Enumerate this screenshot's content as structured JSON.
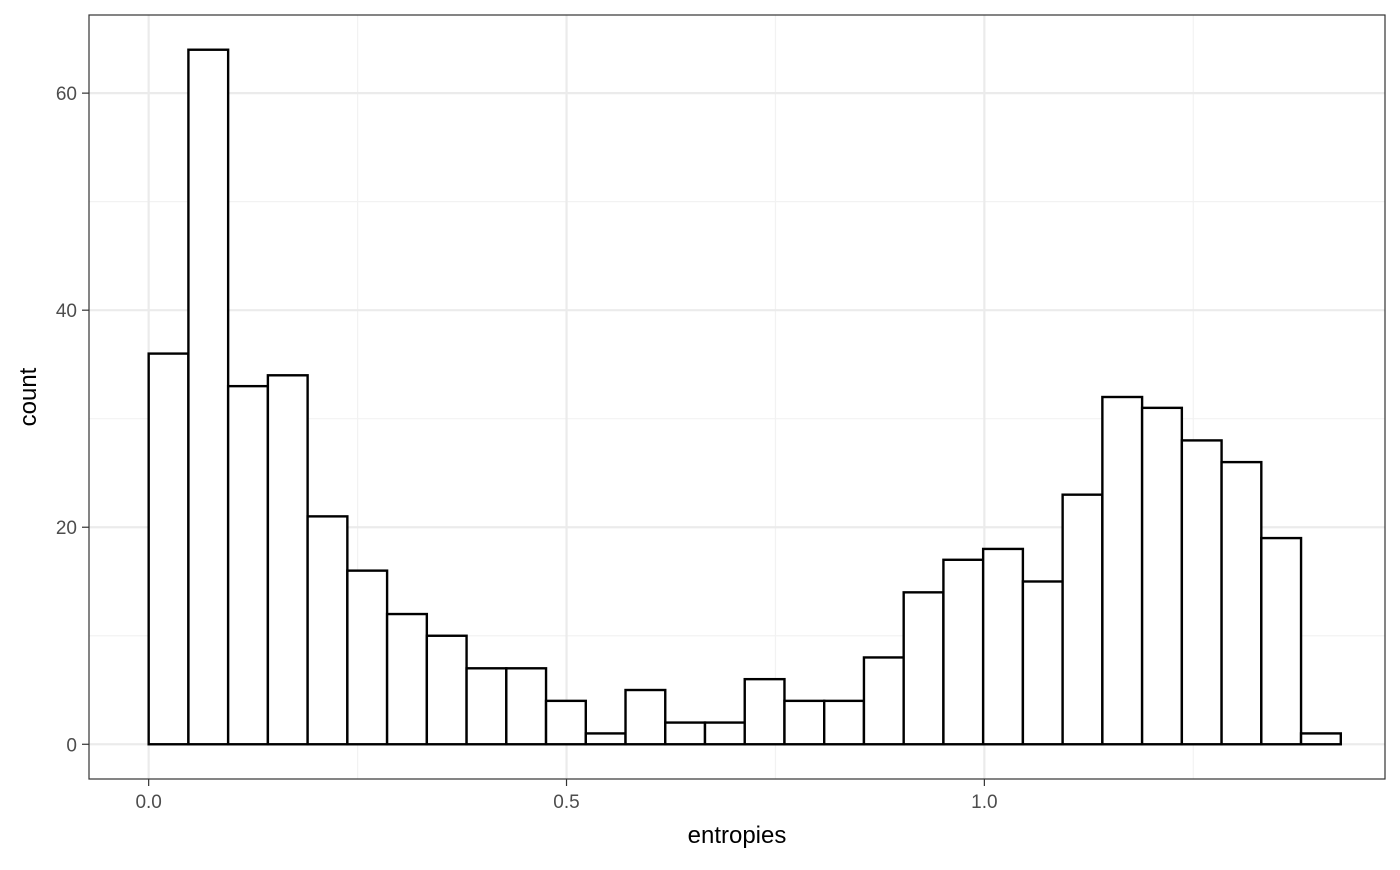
{
  "chart_data": {
    "type": "bar",
    "title": "",
    "xlabel": "entropies",
    "ylabel": "count",
    "x_ticks": [
      "0.0",
      "0.5",
      "1.0"
    ],
    "x_tick_values": [
      0.0,
      0.5,
      1.0
    ],
    "y_ticks": [
      "0",
      "20",
      "40",
      "60"
    ],
    "y_tick_values": [
      0,
      20,
      40,
      60
    ],
    "xlim": [
      -0.0714,
      1.4794
    ],
    "ylim": [
      -3.2,
      67.2
    ],
    "grid": true,
    "legend": "none",
    "bin_width": 0.04755,
    "first_bin_left": 0.0,
    "counts": [
      36,
      64,
      33,
      34,
      21,
      16,
      12,
      10,
      7,
      7,
      4,
      1,
      5,
      2,
      2,
      6,
      4,
      4,
      8,
      14,
      17,
      18,
      15,
      23,
      32,
      31,
      28,
      26,
      19,
      1
    ],
    "bar_fill": "#ffffff",
    "bar_stroke": "#000000"
  }
}
